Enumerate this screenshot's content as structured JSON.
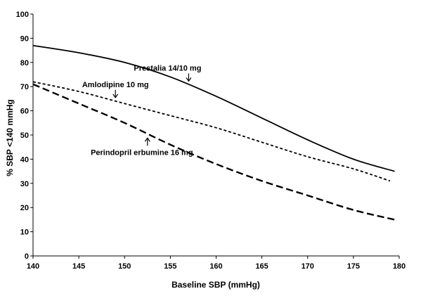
{
  "chart_data": {
    "type": "line",
    "title": "",
    "xlabel": "Baseline SBP (mmHg)",
    "ylabel": "% SBP <140 mmHg",
    "xlim": [
      140,
      180
    ],
    "ylim": [
      0,
      100
    ],
    "x_ticks": [
      140,
      145,
      150,
      155,
      160,
      165,
      170,
      175,
      180
    ],
    "y_ticks": [
      0,
      10,
      20,
      30,
      40,
      50,
      60,
      70,
      80,
      90,
      100
    ],
    "grid": false,
    "legend": "none",
    "series": [
      {
        "name": "Prestalia 14/10 mg",
        "style": "solid",
        "color": "#000000",
        "x": [
          140,
          145,
          150,
          155,
          160,
          165,
          170,
          175,
          179.5
        ],
        "y": [
          87,
          84,
          80,
          74,
          66,
          57,
          48,
          40,
          35
        ],
        "annotation": {
          "text": "Prestalia 14/10 mg",
          "arrow_x": 157,
          "arrow_direction": "down"
        }
      },
      {
        "name": "Amlodipine 10 mg",
        "style": "dotted",
        "color": "#000000",
        "x": [
          140,
          145,
          150,
          155,
          160,
          165,
          170,
          175,
          179
        ],
        "y": [
          72,
          68,
          63,
          58,
          53,
          47,
          41,
          36,
          31
        ],
        "annotation": {
          "text": "Amlodipine 10 mg",
          "arrow_x": 149,
          "arrow_direction": "down"
        }
      },
      {
        "name": "Perindopril erbumine 16 mg",
        "style": "dashed",
        "color": "#000000",
        "x": [
          140,
          145,
          150,
          155,
          160,
          165,
          170,
          175,
          179.5
        ],
        "y": [
          71,
          63,
          55,
          46,
          38,
          31,
          25,
          19,
          15
        ],
        "annotation": {
          "text": "Perindopril erbumine 16 mg",
          "arrow_x": 152.5,
          "arrow_direction": "up"
        }
      }
    ]
  }
}
